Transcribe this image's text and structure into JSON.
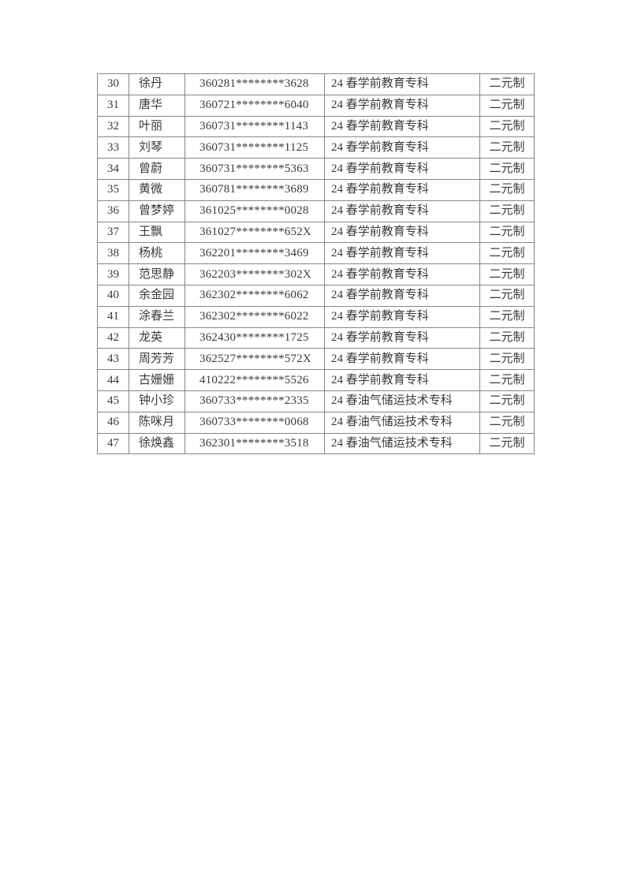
{
  "page": {
    "type": "document-page"
  },
  "colors": {
    "page_background": "#ffffff",
    "table_border": "#868686",
    "text": "#3a3a3a"
  },
  "table": {
    "rows": [
      {
        "no": "30",
        "name": "徐丹",
        "id": "360281********3628",
        "program": "24 春学前教育专科",
        "mode": "二元制"
      },
      {
        "no": "31",
        "name": "唐华",
        "id": "360721********6040",
        "program": "24 春学前教育专科",
        "mode": "二元制"
      },
      {
        "no": "32",
        "name": "叶丽",
        "id": "360731********1143",
        "program": "24 春学前教育专科",
        "mode": "二元制"
      },
      {
        "no": "33",
        "name": "刘琴",
        "id": "360731********1125",
        "program": "24 春学前教育专科",
        "mode": "二元制"
      },
      {
        "no": "34",
        "name": "曾蔚",
        "id": "360731********5363",
        "program": "24 春学前教育专科",
        "mode": "二元制"
      },
      {
        "no": "35",
        "name": "黄微",
        "id": "360781********3689",
        "program": "24 春学前教育专科",
        "mode": "二元制"
      },
      {
        "no": "36",
        "name": "曾梦婷",
        "id": "361025********0028",
        "program": "24 春学前教育专科",
        "mode": "二元制"
      },
      {
        "no": "37",
        "name": "王飘",
        "id": "361027********652X",
        "program": "24 春学前教育专科",
        "mode": "二元制"
      },
      {
        "no": "38",
        "name": "杨桃",
        "id": "362201********3469",
        "program": "24 春学前教育专科",
        "mode": "二元制"
      },
      {
        "no": "39",
        "name": "范思静",
        "id": "362203********302X",
        "program": "24 春学前教育专科",
        "mode": "二元制"
      },
      {
        "no": "40",
        "name": "余金园",
        "id": "362302********6062",
        "program": "24 春学前教育专科",
        "mode": "二元制"
      },
      {
        "no": "41",
        "name": "涂春兰",
        "id": "362302********6022",
        "program": "24 春学前教育专科",
        "mode": "二元制"
      },
      {
        "no": "42",
        "name": "龙英",
        "id": "362430********1725",
        "program": "24 春学前教育专科",
        "mode": "二元制"
      },
      {
        "no": "43",
        "name": "周芳芳",
        "id": "362527********572X",
        "program": "24 春学前教育专科",
        "mode": "二元制"
      },
      {
        "no": "44",
        "name": "古姗姗",
        "id": "410222********5526",
        "program": "24 春学前教育专科",
        "mode": "二元制"
      },
      {
        "no": "45",
        "name": "钟小珍",
        "id": "360733********2335",
        "program": "24 春油气储运技术专科",
        "mode": "二元制"
      },
      {
        "no": "46",
        "name": "陈咪月",
        "id": "360733********0068",
        "program": "24 春油气储运技术专科",
        "mode": "二元制"
      },
      {
        "no": "47",
        "name": "徐焕鑫",
        "id": "362301********3518",
        "program": "24 春油气储运技术专科",
        "mode": "二元制"
      }
    ]
  }
}
